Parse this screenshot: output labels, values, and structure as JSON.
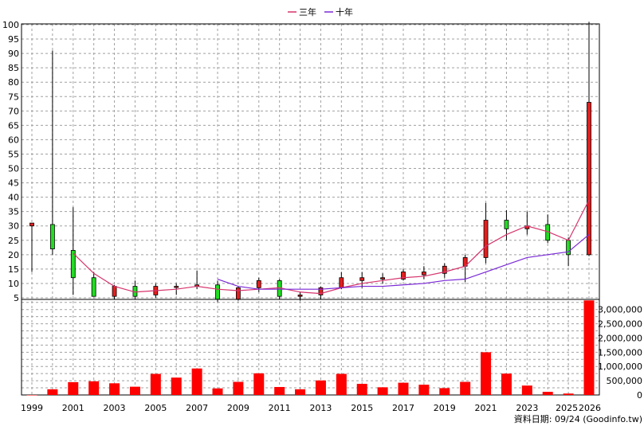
{
  "chart_data": {
    "type": "candlestick",
    "legend": {
      "placement": "top-center",
      "items": [
        {
          "name": "三年",
          "color": "#d6336c"
        },
        {
          "name": "十年",
          "color": "#7a28d6"
        }
      ]
    },
    "footer_note": "資料日期: 09/24  (Goodinfo.tw)",
    "x_tick_labels": [
      "1999",
      "2001",
      "2003",
      "2005",
      "2007",
      "2009",
      "2011",
      "2013",
      "2015",
      "2017",
      "2019",
      "2021",
      "2023",
      "2025",
      "2026"
    ],
    "price_axis": {
      "ylim": [
        0,
        102
      ],
      "ticks": [
        "5",
        "10",
        "15",
        "20",
        "25",
        "30",
        "35",
        "40",
        "45",
        "50",
        "55",
        "60",
        "65",
        "70",
        "75",
        "80",
        "85",
        "90",
        "95",
        "100"
      ]
    },
    "volume_axis": {
      "ylim": [
        0,
        3300000
      ],
      "ticks": [
        "0",
        "500,000",
        "1,000,000",
        "1,500,000",
        "2,000,000",
        "2,500,000",
        "3,000,000"
      ]
    },
    "colors": {
      "up": "#e41e1e",
      "down": "#22dd22",
      "volume": "#ff0000",
      "grid": "#a0a0a0"
    },
    "candles": [
      {
        "year": 1999,
        "open": 30,
        "high": 31,
        "low": 14,
        "close": 31
      },
      {
        "year": 2000,
        "open": 30.5,
        "high": 91,
        "low": 20,
        "close": 22
      },
      {
        "year": 2001,
        "open": 21.5,
        "high": 36.5,
        "low": 6,
        "close": 12
      },
      {
        "year": 2002,
        "open": 12,
        "high": 14,
        "low": 5.5,
        "close": 5.5
      },
      {
        "year": 2003,
        "open": 5.5,
        "high": 9.5,
        "low": 4.5,
        "close": 9
      },
      {
        "year": 2004,
        "open": 9,
        "high": 11,
        "low": 4.5,
        "close": 5.5
      },
      {
        "year": 2005,
        "open": 6,
        "high": 10,
        "low": 5,
        "close": 9
      },
      {
        "year": 2006,
        "open": 9,
        "high": 10,
        "low": 6,
        "close": 9
      },
      {
        "year": 2007,
        "open": 9,
        "high": 14.5,
        "low": 8,
        "close": 9.5
      },
      {
        "year": 2008,
        "open": 9.5,
        "high": 11,
        "low": 3.5,
        "close": 4.5
      },
      {
        "year": 2009,
        "open": 4.5,
        "high": 9,
        "low": 4,
        "close": 8.5
      },
      {
        "year": 2010,
        "open": 8.5,
        "high": 12,
        "low": 7,
        "close": 11
      },
      {
        "year": 2011,
        "open": 11,
        "high": 11.5,
        "low": 4.5,
        "close": 5.5
      },
      {
        "year": 2012,
        "open": 5.5,
        "high": 7,
        "low": 4,
        "close": 6
      },
      {
        "year": 2013,
        "open": 6,
        "high": 9,
        "low": 4.5,
        "close": 8.5
      },
      {
        "year": 2014,
        "open": 8.5,
        "high": 14,
        "low": 8,
        "close": 12
      },
      {
        "year": 2015,
        "open": 11,
        "high": 14,
        "low": 8.5,
        "close": 12
      },
      {
        "year": 2016,
        "open": 11.5,
        "high": 13.5,
        "low": 10,
        "close": 12
      },
      {
        "year": 2017,
        "open": 11.5,
        "high": 15,
        "low": 11,
        "close": 14
      },
      {
        "year": 2018,
        "open": 13,
        "high": 16,
        "low": 11.5,
        "close": 14
      },
      {
        "year": 2019,
        "open": 13.5,
        "high": 17,
        "low": 12,
        "close": 16
      },
      {
        "year": 2020,
        "open": 16,
        "high": 20,
        "low": 10.5,
        "close": 19
      },
      {
        "year": 2021,
        "open": 19,
        "high": 38,
        "low": 17,
        "close": 32
      },
      {
        "year": 2022,
        "open": 32,
        "high": 35.5,
        "low": 25,
        "close": 29
      },
      {
        "year": 2023,
        "open": 29,
        "high": 35,
        "low": 27,
        "close": 30
      },
      {
        "year": 2024,
        "open": 30.5,
        "high": 34,
        "low": 24,
        "close": 25
      },
      {
        "year": 2025,
        "open": 25,
        "high": 26,
        "low": 16,
        "close": 20
      },
      {
        "year": 2026,
        "open": 20,
        "high": 101,
        "low": 19.5,
        "close": 73
      }
    ],
    "series": [
      {
        "name": "三年",
        "x": [
          2001,
          2002,
          2003,
          2004,
          2005,
          2006,
          2007,
          2008,
          2009,
          2010,
          2011,
          2012,
          2013,
          2014,
          2015,
          2016,
          2017,
          2018,
          2019,
          2020,
          2021,
          2022,
          2023,
          2024,
          2025,
          2026
        ],
        "values": [
          20.5,
          13.5,
          9,
          7,
          7.5,
          8,
          9,
          8,
          7.5,
          8,
          8.5,
          7,
          6.5,
          8.5,
          10,
          11,
          12,
          12.5,
          14,
          16,
          23,
          27,
          30,
          28,
          25,
          39
        ]
      },
      {
        "name": "十年",
        "x": [
          2008,
          2009,
          2010,
          2011,
          2012,
          2013,
          2014,
          2015,
          2016,
          2017,
          2018,
          2019,
          2020,
          2021,
          2022,
          2023,
          2024,
          2025,
          2026
        ],
        "values": [
          11.5,
          9,
          8,
          8,
          8,
          8,
          8.5,
          9,
          9,
          9.5,
          10,
          11,
          11.5,
          14,
          16.5,
          19,
          20,
          21,
          27
        ]
      }
    ],
    "volume": {
      "years": [
        1999,
        2000,
        2001,
        2002,
        2003,
        2004,
        2005,
        2006,
        2007,
        2008,
        2009,
        2010,
        2011,
        2012,
        2013,
        2014,
        2015,
        2016,
        2017,
        2018,
        2019,
        2020,
        2021,
        2022,
        2023,
        2024,
        2025,
        2026
      ],
      "values": [
        0,
        200000,
        450000,
        480000,
        410000,
        290000,
        740000,
        610000,
        930000,
        230000,
        460000,
        760000,
        280000,
        200000,
        510000,
        740000,
        390000,
        270000,
        430000,
        360000,
        240000,
        460000,
        1500000,
        750000,
        330000,
        110000,
        50000,
        3320000
      ]
    }
  }
}
